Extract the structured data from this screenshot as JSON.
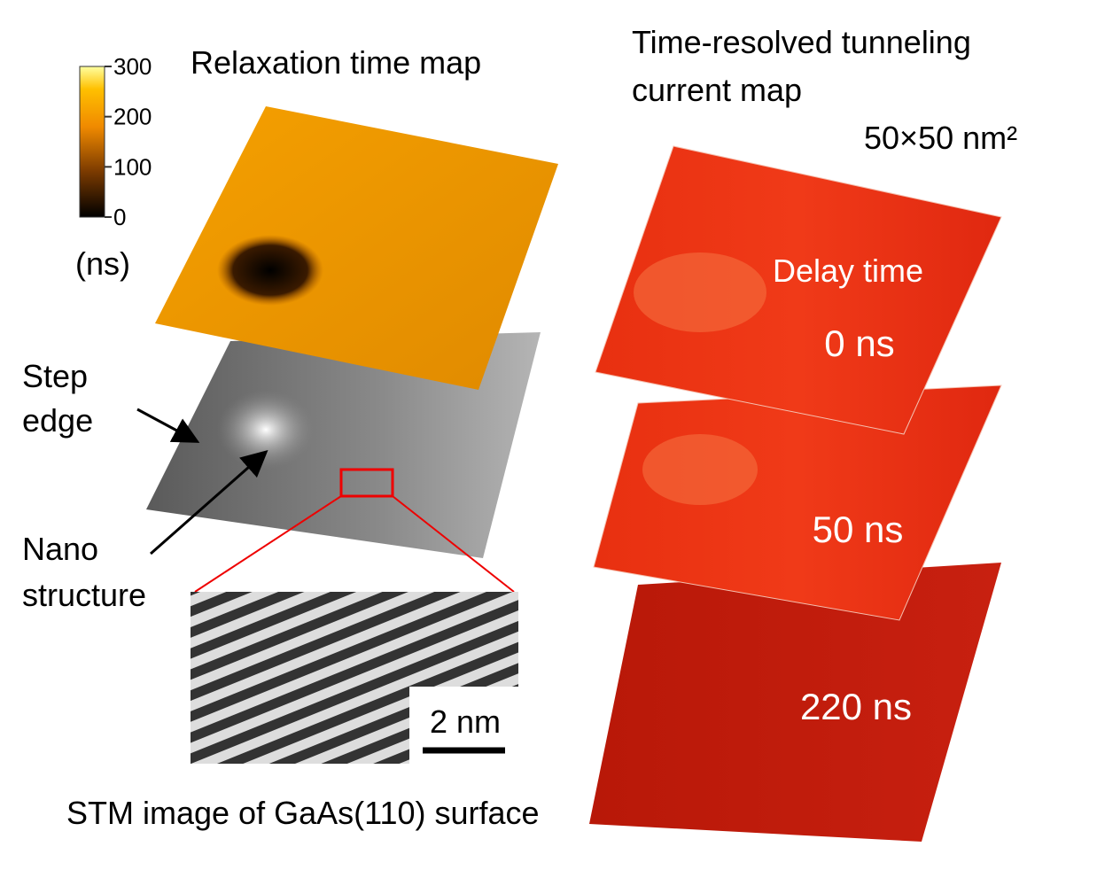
{
  "relaxation_map": {
    "title": "Relaxation time map",
    "colorbar_ticks": [
      0,
      100,
      200,
      300
    ],
    "unit": "(ns)"
  },
  "annotations": {
    "step_edge": [
      "Step",
      "edge"
    ],
    "nano_structure": [
      "Nano",
      "structure"
    ]
  },
  "stm_image": {
    "scale_bar": "2 nm",
    "caption": "STM image of GaAs(110) surface"
  },
  "tunneling_map": {
    "title_lines": [
      "Time-resolved tunneling",
      "current map"
    ],
    "size": "50×50 nm²",
    "delay_label": "Delay time",
    "delays": [
      "0 ns",
      "50 ns",
      "220 ns"
    ]
  }
}
